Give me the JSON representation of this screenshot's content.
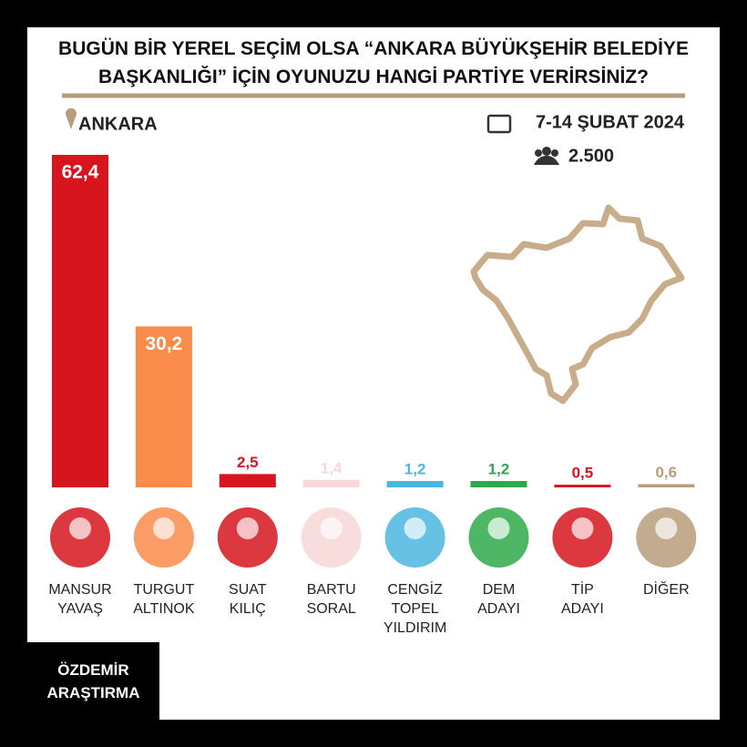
{
  "chart_data": {
    "type": "bar",
    "title": "BUGÜN BİR YEREL SEÇİM OLSA “ANKARA BÜYÜKŞEHİR BELEDİYE BAŞKANLIĞI” İÇİN OYUNUZU HANGİ PARTİYE VERİRSİNİZ?",
    "location": "ANKARA",
    "date": "7-14 ŞUBAT 2024",
    "sample_size": "2.500",
    "source": "ÖZDEMİR ARAŞTIRMA",
    "categories": [
      "MANSUR\nYAVAŞ",
      "TURGUT\nALTINOK",
      "SUAT\nKILIÇ",
      "BARTU\nSORAL",
      "CENGİZ\nTOPEL\nYILDIRIM",
      "DEM\nADAYI",
      "TİP\nADAYI",
      "DİĞER"
    ],
    "values": [
      62.4,
      30.2,
      2.5,
      1.4,
      1.2,
      1.2,
      0.5,
      0.6
    ],
    "value_labels": [
      "62,4",
      "30,2",
      "2,5",
      "1,4",
      "1,2",
      "1,2",
      "0,5",
      "0,6"
    ],
    "colors": [
      "#d6151f",
      "#f98b4b",
      "#d6151f",
      "#f7d7d7",
      "#4bb6e1",
      "#2faa4b",
      "#d6151f",
      "#b89c7c"
    ]
  }
}
